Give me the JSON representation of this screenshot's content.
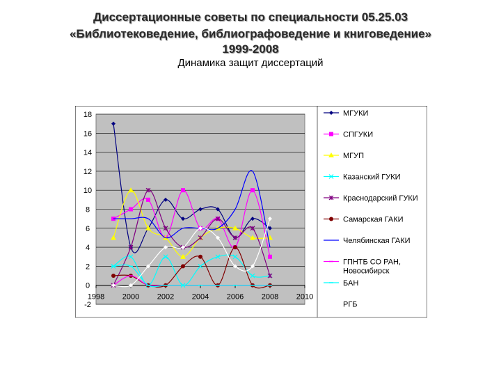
{
  "title_lines": [
    "Диссертационные советы по специальности 05.25.03",
    "«Библиотековедение, библиографоведение и книговедение»",
    "1999-2008"
  ],
  "subtitle": "Динамика защит диссертаций",
  "chart_data": {
    "type": "line",
    "title": "Динамика защит диссертаций",
    "xlabel": "",
    "ylabel": "",
    "xlim": [
      1998,
      2010
    ],
    "ylim": [
      -2,
      18
    ],
    "xticks": [
      1998,
      2000,
      2002,
      2004,
      2006,
      2008,
      2010
    ],
    "yticks": [
      -2,
      0,
      2,
      4,
      6,
      8,
      10,
      12,
      14,
      16,
      18
    ],
    "grid": true,
    "plot_background": "#c0c0c0",
    "legend_position": "right",
    "x": [
      1999,
      2000,
      2001,
      2002,
      2003,
      2004,
      2005,
      2006,
      2007,
      2008
    ],
    "series": [
      {
        "name": "МГУКИ",
        "color": "#000080",
        "marker": "diamond",
        "values": [
          17,
          4,
          6,
          9,
          7,
          8,
          8,
          5,
          7,
          6
        ]
      },
      {
        "name": "СПГУКИ",
        "color": "#ff00ff",
        "marker": "square",
        "values": [
          7,
          8,
          9,
          5,
          10,
          6,
          7,
          4,
          10,
          3
        ]
      },
      {
        "name": "МГУП",
        "color": "#ffff00",
        "marker": "triangle",
        "values": [
          5,
          10,
          6,
          5,
          3,
          5,
          6,
          6,
          5,
          5
        ]
      },
      {
        "name": "Казанский ГУКИ",
        "color": "#00ffff",
        "marker": "x",
        "values": [
          2,
          3,
          0,
          3,
          0,
          2,
          3,
          3,
          1,
          1
        ]
      },
      {
        "name": "Краснодарский ГУКИ",
        "color": "#800080",
        "marker": "star",
        "values": [
          0,
          4,
          10,
          6,
          4,
          5,
          7,
          5,
          6,
          1
        ]
      },
      {
        "name": "Самарская ГАКИ",
        "color": "#800000",
        "marker": "circle",
        "values": [
          1,
          1,
          0,
          0,
          2,
          3,
          0,
          4,
          0,
          0
        ]
      },
      {
        "name": "Челябинская ГАКИ",
        "color": "#0000ff",
        "marker": "none",
        "values": [
          7,
          7,
          7,
          5,
          6,
          6,
          6,
          8,
          12,
          4
        ]
      },
      {
        "name": "ГПНТБ СО РАН, Новосибирск",
        "color": "#ff00ff",
        "marker": "dash",
        "values": [
          0,
          1,
          0,
          0,
          0,
          0,
          0,
          0,
          0,
          0
        ]
      },
      {
        "name": "БАН",
        "color": "#00ffff",
        "marker": "dash",
        "values": [
          2,
          2,
          0,
          0,
          0,
          0,
          0,
          0,
          0,
          0
        ]
      },
      {
        "name": "РГБ",
        "color": "#ffffff",
        "marker": "diamond",
        "values": [
          0,
          0,
          2,
          4,
          4,
          6,
          5,
          2,
          2,
          7
        ]
      }
    ]
  }
}
